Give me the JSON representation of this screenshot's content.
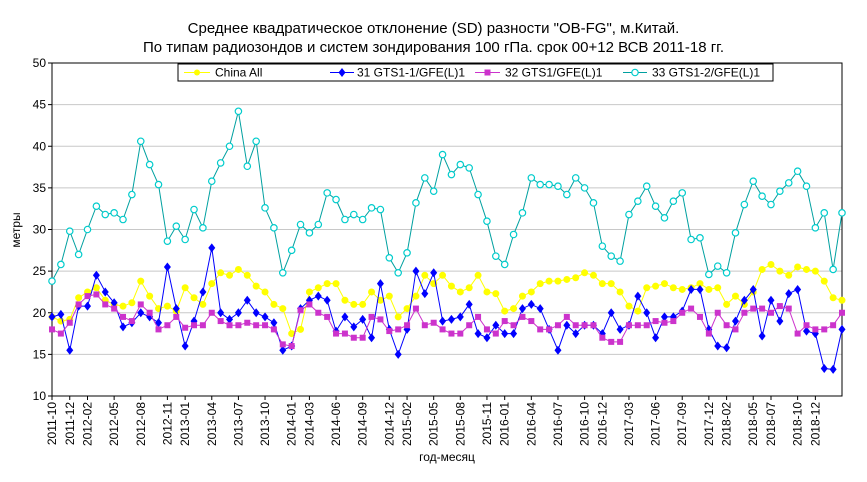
{
  "chart_data": {
    "type": "line",
    "title": "Среднее квадратическое отклонение (SD) разности \"OB-FG\", м.Китай.",
    "subtitle": "По типам радиозондов и систем зондирования 100 гПа. срок 00+12 ВСВ 2011-18 гг.",
    "xlabel": "год-месяц",
    "ylabel": "метры",
    "ylim": [
      10,
      50
    ],
    "yticks": [
      10,
      15,
      20,
      25,
      30,
      35,
      40,
      45,
      50
    ],
    "grid": true,
    "legend_position": "top",
    "x_labels": [
      "2011-10",
      "2011-12",
      "2012-02",
      "2012-05",
      "2012-08",
      "2012-11",
      "2013-01",
      "2013-04",
      "2013-07",
      "2013-10",
      "2014-01",
      "2014-03",
      "2014-06",
      "2014-09",
      "2014-12",
      "2015-02",
      "2015-05",
      "2015-08",
      "2015-11",
      "2016-01",
      "2016-04",
      "2016-07",
      "2016-10",
      "2016-12",
      "2017-03",
      "2017-06",
      "2017-09",
      "2017-12",
      "2018-02",
      "2018-05",
      "2018-07",
      "2018-10",
      "2018-12"
    ],
    "x_label_positions": [
      0,
      2,
      4,
      7,
      10,
      13,
      15,
      18,
      21,
      24,
      27,
      29,
      32,
      35,
      38,
      40,
      43,
      46,
      49,
      51,
      54,
      57,
      60,
      62,
      65,
      68,
      71,
      74,
      76,
      79,
      81,
      84,
      86
    ],
    "x": [
      "2011-10",
      "2011-11",
      "2011-12",
      "2012-01",
      "2012-02",
      "2012-03",
      "2012-04",
      "2012-05",
      "2012-06",
      "2012-07",
      "2012-08",
      "2012-09",
      "2012-10",
      "2012-11",
      "2012-12",
      "2013-01",
      "2013-02",
      "2013-03",
      "2013-04",
      "2013-05",
      "2013-06",
      "2013-07",
      "2013-08",
      "2013-09",
      "2013-10",
      "2013-11",
      "2013-12",
      "2014-01",
      "2014-02",
      "2014-03",
      "2014-04",
      "2014-05",
      "2014-06",
      "2014-07",
      "2014-08",
      "2014-09",
      "2014-10",
      "2014-11",
      "2014-12",
      "2015-01",
      "2015-02",
      "2015-03",
      "2015-04",
      "2015-05",
      "2015-06",
      "2015-07",
      "2015-08",
      "2015-09",
      "2015-10",
      "2015-11",
      "2015-12",
      "2016-01",
      "2016-02",
      "2016-03",
      "2016-04",
      "2016-05",
      "2016-06",
      "2016-07",
      "2016-08",
      "2016-09",
      "2016-10",
      "2016-11",
      "2016-12",
      "2017-01",
      "2017-02",
      "2017-03",
      "2017-04",
      "2017-05",
      "2017-06",
      "2017-07",
      "2017-08",
      "2017-09",
      "2017-10",
      "2017-11",
      "2017-12",
      "2018-01",
      "2018-02",
      "2018-03",
      "2018-04",
      "2018-05",
      "2018-06",
      "2018-07",
      "2018-08",
      "2018-09",
      "2018-10",
      "2018-11",
      "2018-12",
      "2019-01",
      "2019-02",
      "2019-03"
    ],
    "series": [
      {
        "name": "China All",
        "color": "#ffff00",
        "marker": "circle",
        "values": [
          19.5,
          19.0,
          19.2,
          21.8,
          22.5,
          23.0,
          21.5,
          21.0,
          20.8,
          21.2,
          23.8,
          22.0,
          20.5,
          20.8,
          20.2,
          23.0,
          21.8,
          21.0,
          23.5,
          24.8,
          24.5,
          25.2,
          24.5,
          23.2,
          22.5,
          21.0,
          20.5,
          17.5,
          18.0,
          22.5,
          23.0,
          23.5,
          23.5,
          21.5,
          21.0,
          21.0,
          22.5,
          21.5,
          22.0,
          19.5,
          20.5,
          22.0,
          24.5,
          23.5,
          24.5,
          23.2,
          22.5,
          23.0,
          24.5,
          22.5,
          22.3,
          20.2,
          20.5,
          22.0,
          22.5,
          23.5,
          23.8,
          23.8,
          24.0,
          24.2,
          24.8,
          24.5,
          23.5,
          23.5,
          22.5,
          20.8,
          20.2,
          23.0,
          23.2,
          23.5,
          23.0,
          22.8,
          23.0,
          23.5,
          22.8,
          23.0,
          21.0,
          22.0,
          21.0,
          22.5,
          25.2,
          25.8,
          25.0,
          24.5,
          25.5,
          25.2,
          25.0,
          23.8,
          21.8,
          21.5
        ]
      },
      {
        "name": "31 GTS1-1/GFE(L)1",
        "color": "#0000ff",
        "marker": "diamond",
        "values": [
          19.5,
          19.8,
          15.5,
          20.8,
          20.8,
          24.5,
          22.5,
          21.2,
          18.3,
          18.8,
          20.0,
          19.5,
          18.8,
          25.5,
          20.5,
          16.0,
          19.0,
          22.5,
          27.8,
          20.0,
          19.2,
          20.0,
          21.5,
          20.0,
          19.5,
          18.8,
          15.5,
          16.0,
          20.5,
          21.5,
          22.0,
          21.5,
          17.8,
          19.5,
          18.3,
          19.2,
          17.0,
          23.5,
          18.0,
          15.0,
          18.0,
          25.0,
          22.3,
          24.8,
          19.0,
          19.2,
          19.5,
          21.0,
          17.5,
          17.0,
          18.5,
          17.5,
          17.5,
          20.5,
          21.0,
          20.5,
          18.0,
          15.5,
          18.5,
          17.5,
          18.5,
          18.5,
          17.5,
          20.0,
          18.0,
          18.5,
          22.0,
          20.0,
          17.0,
          19.5,
          19.5,
          20.2,
          22.8,
          22.8,
          18.0,
          16.0,
          15.8,
          19.0,
          21.5,
          22.8,
          17.2,
          21.5,
          19.0,
          22.3,
          22.8,
          17.8,
          17.5,
          13.3,
          13.2,
          18.0
        ]
      },
      {
        "name": "32 GTS1/GFE(L)1",
        "color": "#cc33cc",
        "marker": "square",
        "values": [
          18.0,
          17.5,
          18.8,
          21.0,
          22.0,
          22.2,
          21.0,
          20.5,
          19.5,
          19.0,
          21.0,
          20.0,
          18.0,
          18.5,
          19.5,
          18.2,
          18.5,
          18.5,
          20.0,
          19.0,
          18.5,
          18.5,
          18.8,
          18.5,
          18.5,
          18.0,
          16.2,
          16.0,
          20.3,
          21.0,
          20.0,
          19.5,
          17.5,
          17.5,
          17.0,
          17.0,
          19.5,
          19.2,
          17.8,
          18.0,
          18.5,
          20.5,
          18.5,
          18.8,
          18.0,
          17.5,
          17.5,
          18.5,
          19.5,
          18.0,
          17.5,
          19.0,
          18.5,
          19.5,
          19.0,
          18.0,
          18.0,
          18.5,
          19.5,
          18.5,
          18.5,
          18.5,
          17.0,
          16.5,
          16.5,
          18.5,
          18.5,
          18.5,
          19.0,
          18.8,
          19.0,
          20.0,
          20.5,
          19.5,
          17.5,
          20.0,
          18.5,
          18.0,
          20.0,
          20.5,
          20.5,
          20.0,
          20.8,
          20.5,
          17.5,
          18.5,
          18.0,
          18.0,
          18.5,
          20.0
        ]
      },
      {
        "name": "33 GTS1-2/GFE(L)1",
        "color": "#00cccc",
        "marker": "circle-open",
        "values": [
          23.8,
          25.8,
          29.8,
          27.0,
          30.0,
          32.8,
          31.8,
          32.0,
          31.2,
          34.2,
          40.6,
          37.8,
          35.4,
          28.6,
          30.4,
          28.8,
          32.4,
          30.2,
          35.8,
          38.0,
          40.0,
          44.2,
          37.6,
          40.6,
          32.6,
          30.2,
          24.8,
          27.5,
          30.6,
          29.6,
          30.6,
          34.4,
          33.6,
          31.2,
          31.8,
          31.2,
          32.6,
          32.4,
          26.6,
          24.8,
          27.2,
          33.2,
          36.2,
          34.6,
          39.0,
          36.6,
          37.8,
          37.4,
          34.2,
          31.0,
          26.8,
          25.8,
          29.4,
          32.0,
          36.2,
          35.4,
          35.4,
          35.2,
          34.2,
          36.2,
          35.0,
          33.2,
          28.0,
          26.8,
          26.2,
          31.8,
          33.4,
          35.2,
          32.8,
          31.4,
          33.4,
          34.4,
          28.8,
          29.0,
          24.6,
          25.6,
          24.8,
          29.6,
          33.0,
          35.8,
          34.0,
          33.0,
          34.6,
          35.6,
          37.0,
          35.2,
          30.2,
          32.0,
          25.2,
          32.0
        ]
      }
    ]
  }
}
